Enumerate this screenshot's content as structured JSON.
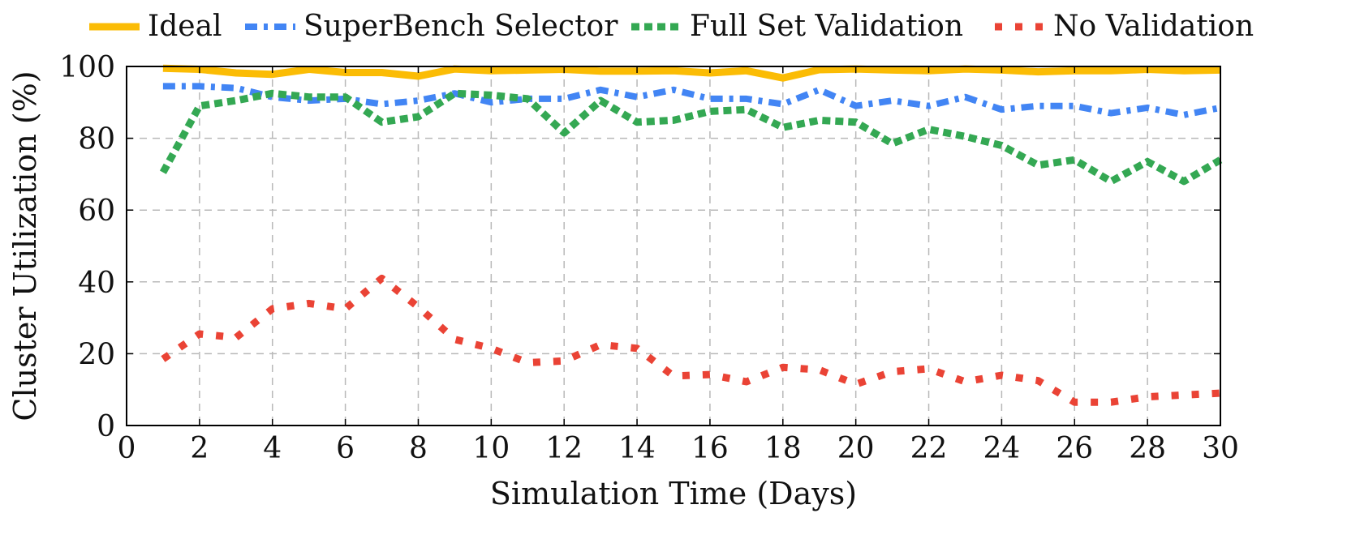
{
  "chart_data": {
    "type": "line",
    "xlabel": "Simulation Time (Days)",
    "ylabel": "Cluster Utilization (%)",
    "xlim": [
      0,
      30
    ],
    "ylim": [
      0,
      100
    ],
    "xticks": [
      0,
      2,
      4,
      6,
      8,
      10,
      12,
      14,
      16,
      18,
      20,
      22,
      24,
      26,
      28,
      30
    ],
    "yticks": [
      0,
      20,
      40,
      60,
      80,
      100
    ],
    "grid": true,
    "legend_position": "top",
    "x": [
      1,
      2,
      3,
      4,
      5,
      6,
      7,
      8,
      9,
      10,
      11,
      12,
      13,
      14,
      15,
      16,
      17,
      18,
      19,
      20,
      21,
      22,
      23,
      24,
      25,
      26,
      27,
      28,
      29,
      30
    ],
    "series": [
      {
        "name": "Ideal",
        "color": "#FBBC05",
        "style": "solid",
        "values": [
          99.5,
          99.2,
          98.2,
          97.8,
          99.2,
          98.3,
          98.3,
          97.3,
          99.3,
          98.8,
          99,
          99.2,
          98.7,
          98.7,
          98.8,
          98.2,
          98.8,
          96.8,
          99.1,
          99.3,
          99,
          98.8,
          99.3,
          99,
          98.5,
          98.8,
          98.8,
          99.2,
          98.8,
          99
        ]
      },
      {
        "name": "SuperBench Selector",
        "color": "#4285F4",
        "style": "dashdot",
        "values": [
          94.5,
          94.5,
          94,
          91.5,
          90.5,
          91,
          89.5,
          90.5,
          92.5,
          90,
          91,
          91,
          93.5,
          91.5,
          93.5,
          91,
          91,
          89.5,
          93.5,
          89,
          90.5,
          89,
          91.5,
          88,
          89,
          89,
          87,
          88.5,
          86.5,
          88.5
        ]
      },
      {
        "name": "Full Set Validation",
        "color": "#34A853",
        "style": "dashed",
        "values": [
          70.5,
          89,
          90.5,
          92.5,
          91.5,
          91.5,
          84.5,
          86,
          92.5,
          92,
          91,
          81.5,
          90.5,
          84.5,
          85,
          87.5,
          88,
          83,
          85,
          84.5,
          78.5,
          82.5,
          80.5,
          78,
          72.5,
          74,
          68,
          73.5,
          68,
          74
        ]
      },
      {
        "name": "No Validation",
        "color": "#EA4335",
        "style": "dotted",
        "values": [
          18.5,
          25.5,
          24.5,
          32.5,
          34,
          32.5,
          41,
          33,
          24,
          21.5,
          17.5,
          18,
          22.5,
          21.5,
          13.8,
          14.2,
          12.2,
          16.2,
          15.5,
          11.5,
          15,
          15.8,
          12.2,
          14,
          12.5,
          6.5,
          6.5,
          8,
          8.5,
          9
        ]
      }
    ]
  }
}
